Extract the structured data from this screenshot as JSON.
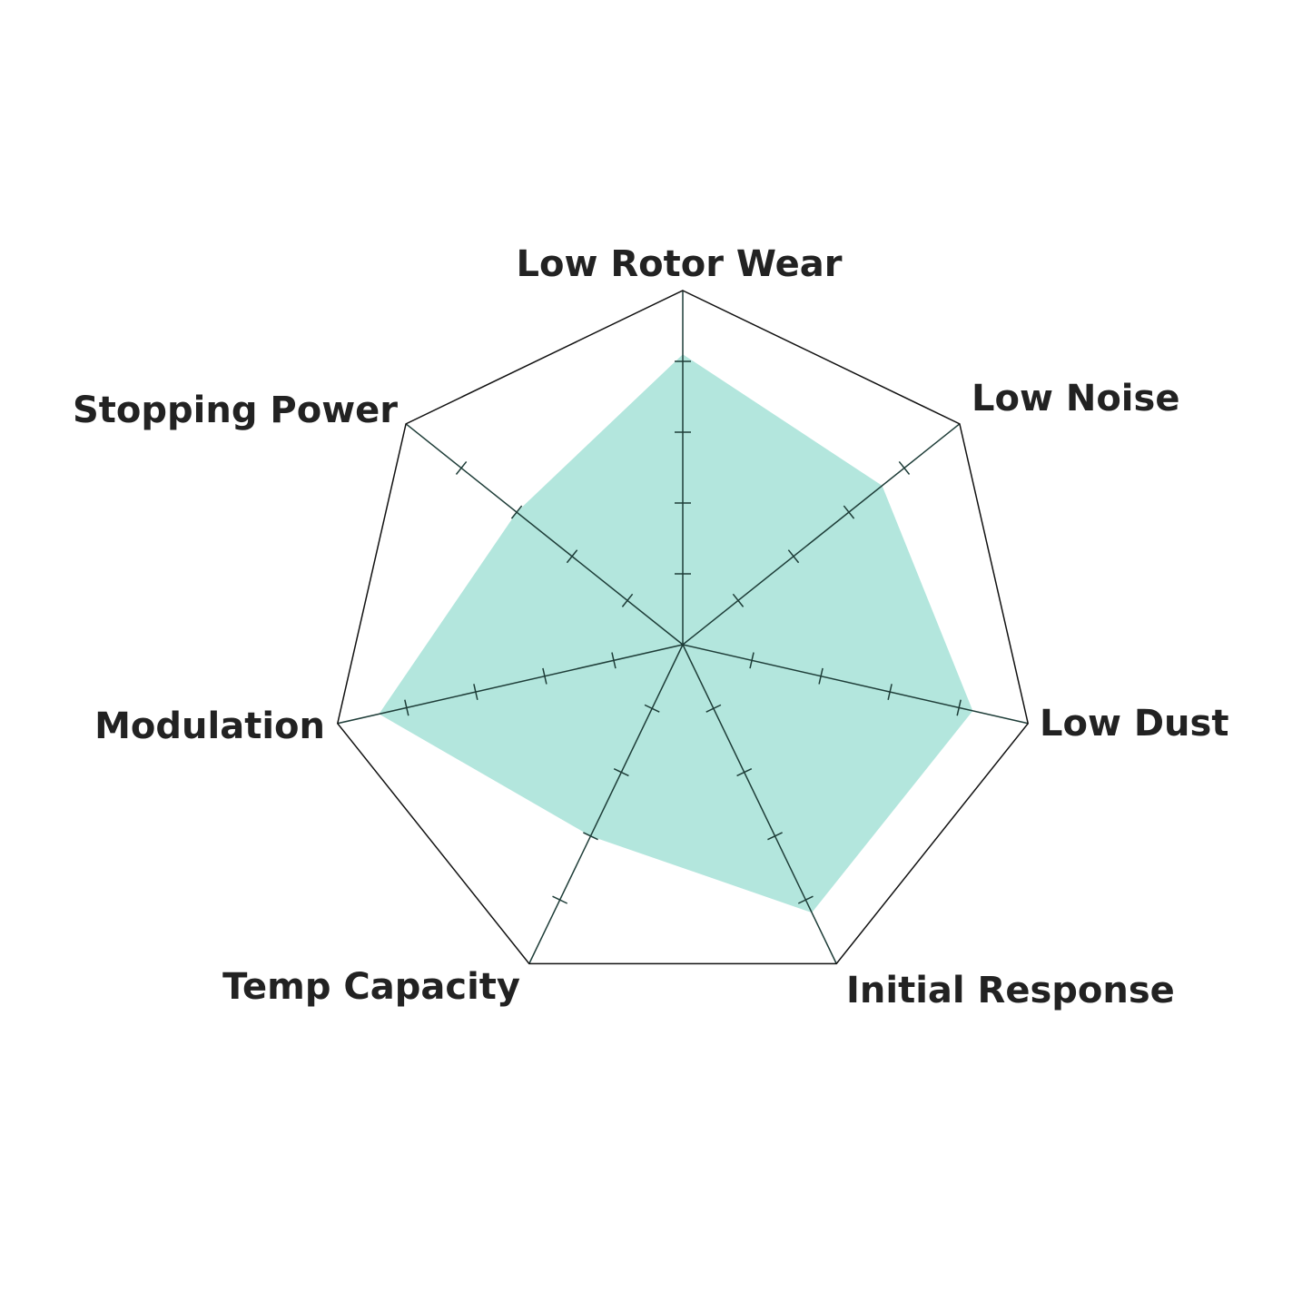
{
  "chart_data": {
    "type": "radar",
    "title": "",
    "axes": [
      "Low Rotor Wear",
      "Low Noise",
      "Low Dust",
      "Initial Response",
      "Temp Capacity",
      "Modulation",
      "Stopping Power"
    ],
    "values": [
      4.1,
      3.6,
      4.2,
      4.2,
      3.0,
      4.4,
      3.0
    ],
    "range": [
      0,
      5
    ],
    "ticks": [
      1,
      2,
      3,
      4
    ],
    "grid": true,
    "colors": {
      "fill": "#b3e6dd",
      "axis": "#1e3d38",
      "outline": "#111111",
      "label": "#222222"
    }
  }
}
